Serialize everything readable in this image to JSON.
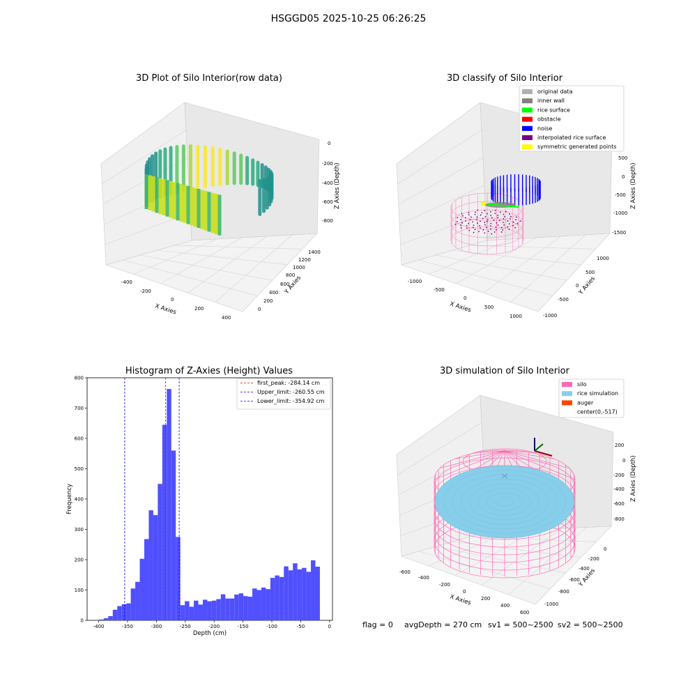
{
  "figure": {
    "suptitle": "HSGGD05 2025-10-25 06:26:25"
  },
  "status_line": {
    "flag": "flag = 0",
    "avg_depth": "avgDepth = 270 cm",
    "sv1": "sv1 = 500~2500",
    "sv2": "sv2 = 500~2500"
  },
  "colors": {
    "histogram": "#5050ff",
    "first_peak": "#ff0000",
    "limits": "#0000ff",
    "silo": "#ff69b4",
    "rice_simulation": "#87ceeb",
    "auger": "#ff4500",
    "original": "#b0b0b0",
    "inner_wall": "#808080",
    "rice_surface": "#00ff00",
    "obstacle": "#ff0000",
    "noise": "#0000ff",
    "interpolated": "#800080",
    "symmetric": "#ffff00"
  },
  "chart_data": [
    {
      "type": "scatter3d",
      "title": "3D Plot of Silo Interior(row data)",
      "xlabel": "X Axies",
      "ylabel": "Y Axies",
      "zlabel": "Z Axies (Depth)",
      "xticks": [
        "-400",
        "-200",
        "0",
        "200",
        "400"
      ],
      "yticks": [
        "0",
        "200",
        "400",
        "600",
        "800",
        "1000",
        "1200",
        "1400"
      ],
      "zticks": [
        "0",
        "-200",
        "-400",
        "-600",
        "-800"
      ],
      "colormap": "viridis"
    },
    {
      "type": "scatter3d",
      "title": "3D classify of Silo Interior",
      "xlabel": "X Axies",
      "ylabel": "Y Axies",
      "zlabel": "Z Axies (Depth)",
      "xticks": [
        "-1000",
        "-500",
        "0",
        "500",
        "1000"
      ],
      "yticks": [
        "-1000",
        "-500",
        "0",
        "500",
        "1000"
      ],
      "zticks": [
        "500",
        "0",
        "-500",
        "-1000",
        "-1500"
      ],
      "legend_position": "top-right",
      "legend": [
        {
          "label": "original data",
          "color": "#b0b0b0"
        },
        {
          "label": "inner wall",
          "color": "#808080"
        },
        {
          "label": "rice surface",
          "color": "#00ff00"
        },
        {
          "label": "obstacle",
          "color": "#ff0000"
        },
        {
          "label": "noise",
          "color": "#0000ff"
        },
        {
          "label": "interpolated rice surface",
          "color": "#800080"
        },
        {
          "label": "symmetric generated points",
          "color": "#ffff00"
        }
      ]
    },
    {
      "type": "bar",
      "title": "Histogram of Z-Axies (Height) Values",
      "xlabel": "Depth (cm)",
      "ylabel": "Frequency",
      "xlim": [
        -420,
        5
      ],
      "ylim": [
        0,
        800
      ],
      "xticks": [
        -400,
        -350,
        -300,
        -250,
        -200,
        -150,
        -100,
        -50,
        0
      ],
      "yticks": [
        0,
        100,
        200,
        300,
        400,
        500,
        600,
        700,
        800
      ],
      "bin_start": -399,
      "bin_width": 7.8,
      "values": [
        3,
        7,
        14,
        35,
        47,
        53,
        56,
        105,
        127,
        203,
        268,
        363,
        347,
        450,
        645,
        763,
        560,
        275,
        50,
        63,
        45,
        65,
        52,
        68,
        63,
        65,
        70,
        86,
        72,
        72,
        85,
        89,
        80,
        78,
        105,
        100,
        108,
        103,
        140,
        148,
        143,
        178,
        165,
        188,
        168,
        173,
        160,
        198,
        177
      ],
      "vlines": [
        {
          "label": "first_peak: -284.14 cm",
          "x": -284.14,
          "color": "#ff0000"
        },
        {
          "label": "Upper_limit: -260.55 cm",
          "x": -260.55,
          "color": "#0000ff"
        },
        {
          "label": "Lower_limit: -354.92 cm",
          "x": -354.92,
          "color": "#0000ff"
        }
      ],
      "legend_position": "top-right"
    },
    {
      "type": "surface3d",
      "title": "3D simulation of Silo Interior",
      "xlabel": "X Axies",
      "ylabel": "Y Axies",
      "zlabel": "Z Axies (Depth)",
      "xticks": [
        "-600",
        "-400",
        "-200",
        "0",
        "200",
        "400",
        "600"
      ],
      "yticks": [
        "0",
        "-200",
        "-400",
        "-600",
        "-800",
        "-1000"
      ],
      "zticks": [
        "200",
        "0",
        "-200",
        "-400",
        "-600",
        "-800"
      ],
      "legend_position": "top-right",
      "legend": [
        {
          "label": "silo",
          "color": "#ff69b4"
        },
        {
          "label": "rice simulation",
          "color": "#87ceeb"
        },
        {
          "label": "auger",
          "color": "#ff4500"
        },
        {
          "label": "center(0,-517)",
          "color": ""
        }
      ]
    }
  ]
}
